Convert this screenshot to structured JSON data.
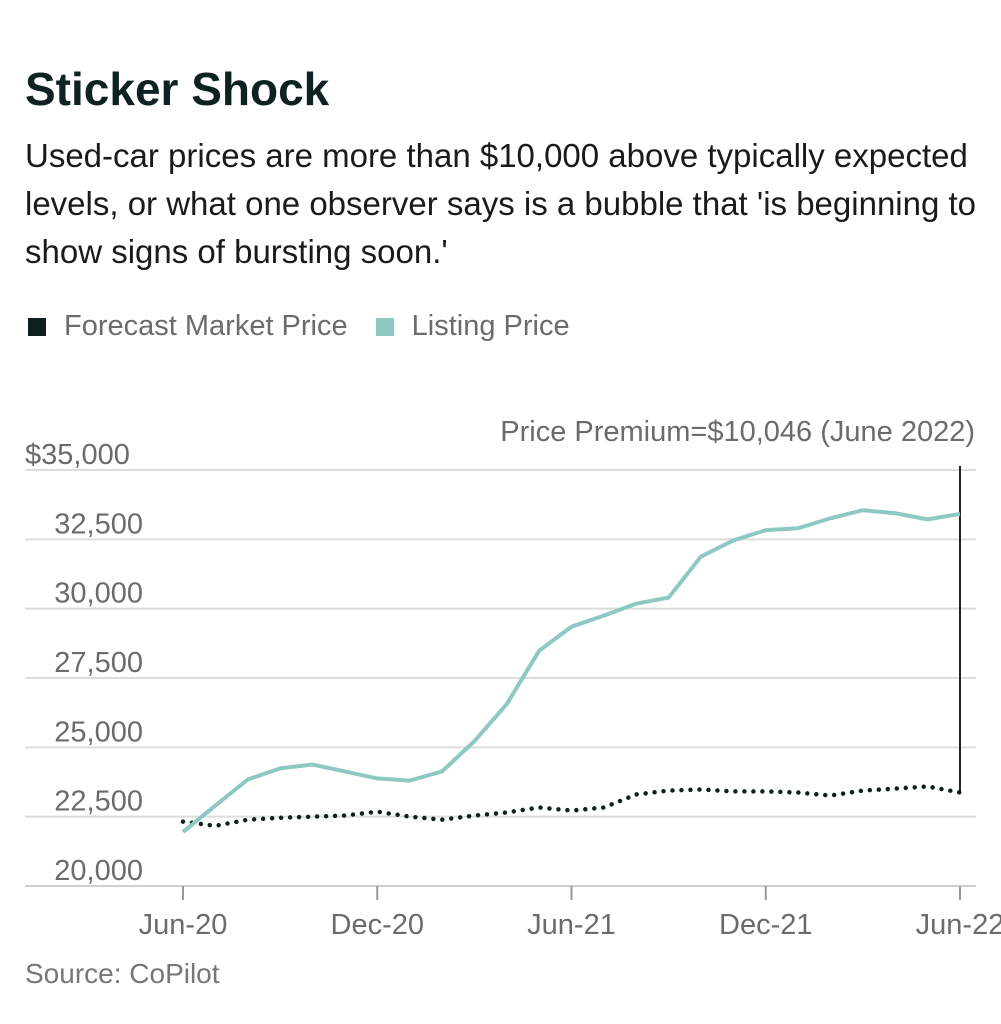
{
  "title": "Sticker Shock",
  "subtitle": "Used-car prices are more than $10,000 above typically expected levels, or what one observer says is a bubble that 'is beginning to show signs of bursting soon.'",
  "source": "Source: CoPilot",
  "colors": {
    "forecast": "#0d1f1e",
    "listing": "#8ec8c3",
    "grid": "#dddddd"
  },
  "chart_data": {
    "type": "line",
    "title": "Sticker Shock",
    "xlabel": "",
    "ylabel": "",
    "ylim": [
      20000,
      35000
    ],
    "y_ticks": [
      {
        "v": 35000,
        "label": "$35,000"
      },
      {
        "v": 32500,
        "label": "32,500"
      },
      {
        "v": 30000,
        "label": "30,000"
      },
      {
        "v": 27500,
        "label": "27,500"
      },
      {
        "v": 25000,
        "label": "25,000"
      },
      {
        "v": 22500,
        "label": "22,500"
      },
      {
        "v": 20000,
        "label": "20,000"
      }
    ],
    "x_ticks": [
      {
        "i": 0,
        "label": "Jun-20"
      },
      {
        "i": 6,
        "label": "Dec-20"
      },
      {
        "i": 12,
        "label": "Jun-21"
      },
      {
        "i": 18,
        "label": "Dec-21"
      },
      {
        "i": 24,
        "label": "Jun-22"
      }
    ],
    "x": [
      "Jun-20",
      "Jul-20",
      "Aug-20",
      "Sep-20",
      "Oct-20",
      "Nov-20",
      "Dec-20",
      "Jan-21",
      "Feb-21",
      "Mar-21",
      "Apr-21",
      "May-21",
      "Jun-21",
      "Jul-21",
      "Aug-21",
      "Sep-21",
      "Oct-21",
      "Nov-21",
      "Dec-21",
      "Jan-22",
      "Feb-22",
      "Mar-22",
      "Apr-22",
      "May-22",
      "Jun-22"
    ],
    "legend_position": "top-left",
    "series": [
      {
        "name": "Forecast Market Price",
        "style": "dotted",
        "values": [
          22320,
          22170,
          22390,
          22460,
          22500,
          22540,
          22680,
          22500,
          22390,
          22540,
          22650,
          22830,
          22720,
          22830,
          23300,
          23440,
          23480,
          23410,
          23410,
          23370,
          23260,
          23440,
          23510,
          23590,
          23370
        ]
      },
      {
        "name": "Listing Price",
        "style": "solid",
        "values": [
          21950,
          22900,
          23840,
          24240,
          24380,
          24130,
          23880,
          23800,
          24130,
          25220,
          26560,
          28480,
          29350,
          29750,
          30180,
          30400,
          31880,
          32460,
          32830,
          32900,
          33260,
          33550,
          33440,
          33220,
          33416
        ]
      }
    ],
    "annotation": "Price Premium=$10,046 (June 2022)"
  }
}
